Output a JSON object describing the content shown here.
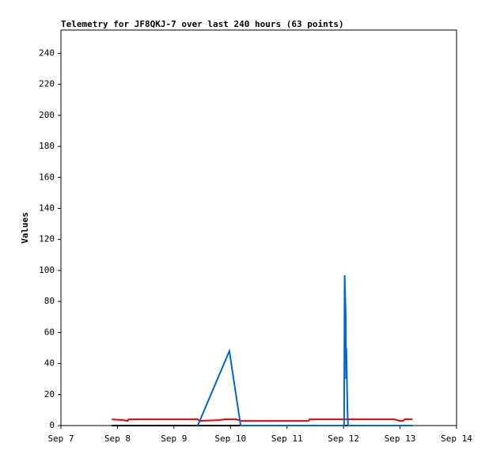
{
  "chart_data": {
    "type": "line",
    "title": "Telemetry for JF8QKJ-7 over last 240 hours (63 points)",
    "y_label": "Values",
    "xlim": [
      7,
      14
    ],
    "xticks": [
      {
        "value": 7,
        "label": "Sep 7"
      },
      {
        "value": 8,
        "label": "Sep 8"
      },
      {
        "value": 9,
        "label": "Sep 9"
      },
      {
        "value": 10,
        "label": "Sep 10"
      },
      {
        "value": 11,
        "label": "Sep 11"
      },
      {
        "value": 12,
        "label": "Sep 12"
      },
      {
        "value": 13,
        "label": "Sep 13"
      },
      {
        "value": 14,
        "label": "Sep 14"
      }
    ],
    "ylim": [
      0,
      255
    ],
    "yticks": [
      0,
      20,
      40,
      60,
      80,
      100,
      120,
      140,
      160,
      180,
      200,
      220,
      240
    ],
    "series": [
      {
        "color": "#000000",
        "x": [
          7.9,
          13.22
        ],
        "values": [
          0,
          0
        ]
      },
      {
        "color": "#ee0000",
        "x": [
          7.9,
          8.1,
          8.18,
          8.2,
          9.42,
          9.45,
          9.8,
          9.9,
          10.1,
          10.2,
          11.38,
          11.4,
          12.9,
          13.0,
          13.05,
          13.08,
          13.22
        ],
        "values": [
          4,
          3.5,
          3,
          4,
          4,
          3,
          3.5,
          4,
          4,
          3,
          3,
          4,
          4,
          3,
          3,
          4,
          4
        ]
      },
      {
        "color": "#0066cc",
        "x": [
          9.42,
          9.98,
          10.18,
          12.01,
          12.02,
          12.04,
          12.045,
          12.05,
          12.06,
          12.07,
          12.08,
          13.22
        ],
        "values": [
          0,
          48,
          0,
          0,
          97,
          70,
          30,
          50,
          30,
          10,
          0,
          0
        ]
      }
    ]
  }
}
